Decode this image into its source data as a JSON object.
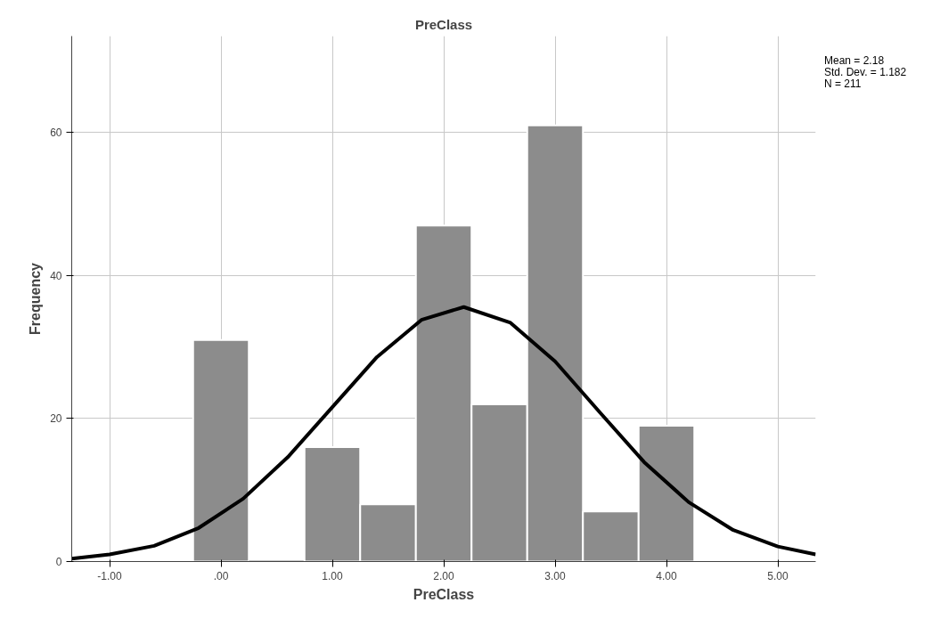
{
  "chart_data": {
    "type": "histogram",
    "title": "PreClass",
    "xlabel": "PreClass",
    "ylabel": "Frequency",
    "bins": [
      -0.25,
      0.25,
      0.75,
      1.25,
      1.75,
      2.25,
      2.75,
      3.25,
      3.75,
      4.25
    ],
    "values": [
      31,
      0,
      16,
      8,
      47,
      22,
      61,
      7,
      19
    ],
    "color": "#8c8c8c",
    "series": [
      {
        "type": "line",
        "color": "#000000",
        "x": [
          -1.34,
          -1.0,
          -0.6,
          -0.2,
          0.2,
          0.6,
          1.0,
          1.4,
          1.8,
          2.18,
          2.6,
          3.0,
          3.4,
          3.8,
          4.2,
          4.6,
          5.0,
          5.34
        ],
        "values": [
          0.4,
          1.0,
          2.2,
          4.7,
          8.8,
          14.6,
          21.6,
          28.6,
          33.8,
          35.6,
          33.4,
          28.0,
          20.9,
          13.9,
          8.3,
          4.4,
          2.1,
          1.0
        ]
      }
    ],
    "xlim": [
      -1.34,
      5.34
    ],
    "ylim": [
      0,
      73.5
    ],
    "xticks": [
      {
        "value": -1,
        "label": "-1.00"
      },
      {
        "value": 0,
        "label": ".00"
      },
      {
        "value": 1,
        "label": "1.00"
      },
      {
        "value": 2,
        "label": "2.00"
      },
      {
        "value": 3,
        "label": "3.00"
      },
      {
        "value": 4,
        "label": "4.00"
      },
      {
        "value": 5,
        "label": "5.00"
      }
    ],
    "yticks": [
      0,
      20,
      40,
      60
    ],
    "grid": true,
    "annotations": [
      "Mean = 2.18",
      "Std. Dev. = 1.182",
      "N = 211"
    ]
  }
}
